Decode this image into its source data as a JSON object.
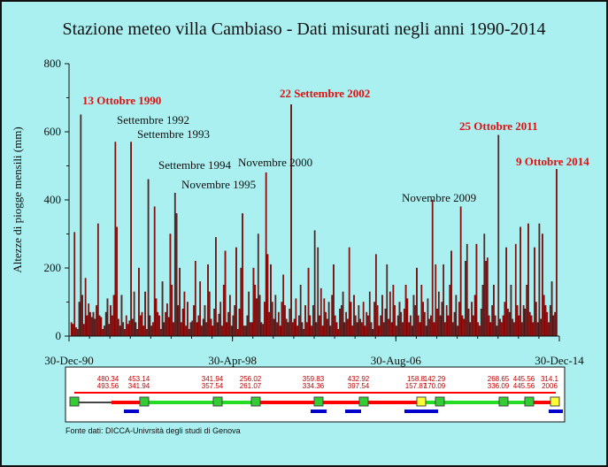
{
  "title": "Stazione meteo villa Cambiaso - Dati misurati negli anni 1990-2014",
  "source": "Fonte dati: DICCA-Univrsità degli studi di Genova",
  "colors": {
    "background": "#aaf0f0",
    "bar": "#a01010",
    "bar_outline": "#3a0000",
    "annotation_red": "#e01010",
    "timeline_red": "#ff0000",
    "timeline_green": "#22dd22",
    "marker_blue": "#0000cc"
  },
  "chart_data": {
    "type": "bar",
    "title": "Stazione meteo villa Cambiaso - Dati misurati negli anni 1990-2014",
    "ylabel": "Altezze di piogge mensili (mm)",
    "xlabel": "",
    "ylim": [
      0,
      800
    ],
    "yticks": [
      0,
      200,
      400,
      600,
      800
    ],
    "x_range": [
      "1990-12-30",
      "2014-12-30"
    ],
    "xtick_labels": [
      "30-Dec-90",
      "30-Apr-98",
      "30-Aug-06",
      "30-Dec-14"
    ],
    "values": [
      40,
      35,
      305,
      25,
      20,
      100,
      650,
      120,
      35,
      170,
      60,
      95,
      70,
      55,
      70,
      50,
      90,
      330,
      60,
      55,
      20,
      30,
      70,
      110,
      35,
      90,
      60,
      120,
      570,
      320,
      50,
      30,
      120,
      40,
      20,
      60,
      35,
      45,
      570,
      50,
      130,
      40,
      20,
      200,
      60,
      70,
      30,
      130,
      20,
      460,
      60,
      30,
      40,
      380,
      110,
      70,
      60,
      20,
      160,
      40,
      70,
      95,
      55,
      300,
      150,
      40,
      420,
      360,
      90,
      200,
      40,
      80,
      130,
      30,
      100,
      20,
      40,
      45,
      90,
      220,
      40,
      60,
      160,
      30,
      50,
      90,
      40,
      210,
      130,
      50,
      30,
      80,
      290,
      40,
      65,
      100,
      30,
      150,
      250,
      40,
      70,
      120,
      30,
      60,
      90,
      260,
      20,
      80,
      200,
      360,
      30,
      30,
      60,
      130,
      40,
      40,
      200,
      150,
      110,
      300,
      120,
      40,
      35,
      100,
      480,
      240,
      70,
      210,
      100,
      50,
      120,
      40,
      70,
      30,
      100,
      180,
      90,
      50,
      40,
      80,
      680,
      40,
      50,
      110,
      30,
      60,
      150,
      40,
      20,
      90,
      40,
      200,
      60,
      30,
      90,
      310,
      40,
      260,
      60,
      140,
      30,
      110,
      70,
      50,
      100,
      30,
      120,
      210,
      60,
      40,
      20,
      80,
      90,
      130,
      40,
      70,
      50,
      260,
      100,
      30,
      120,
      60,
      40,
      90,
      50,
      40,
      100,
      30,
      70,
      60,
      130,
      40,
      20,
      100,
      240,
      90,
      30,
      60,
      120,
      40,
      80,
      210,
      50,
      130,
      40,
      150,
      90,
      30,
      60,
      100,
      70,
      40,
      80,
      150,
      110,
      40,
      60,
      30,
      120,
      90,
      200,
      60,
      40,
      150,
      100,
      70,
      30,
      110,
      50,
      60,
      400,
      40,
      210,
      80,
      130,
      60,
      100,
      210,
      40,
      90,
      60,
      150,
      250,
      40,
      70,
      120,
      30,
      100,
      380,
      60,
      50,
      220,
      270,
      80,
      40,
      100,
      60,
      120,
      270,
      40,
      30,
      80,
      150,
      300,
      220,
      230,
      60,
      40,
      90,
      150,
      60,
      30,
      590,
      50,
      40,
      60,
      100,
      260,
      80,
      70,
      150,
      50,
      40,
      270,
      90,
      60,
      320,
      40,
      90,
      80,
      150,
      330,
      70,
      60,
      40,
      260,
      100,
      40,
      330,
      50,
      300,
      120,
      90,
      70,
      40,
      90,
      160,
      60,
      70,
      490
    ]
  },
  "annotations": [
    {
      "text": "13 Ottobre 1990",
      "color": "red"
    },
    {
      "text": "Settembre 1992",
      "color": "black"
    },
    {
      "text": "Settembre 1993",
      "color": "black"
    },
    {
      "text": "Settembre 1994",
      "color": "black"
    },
    {
      "text": "Novembre 1995",
      "color": "black"
    },
    {
      "text": "Novembre 2000",
      "color": "black"
    },
    {
      "text": "22 Settembre 2002",
      "color": "red"
    },
    {
      "text": "Novembre 2009",
      "color": "black"
    },
    {
      "text": "25 Ottobre 2011",
      "color": "red"
    },
    {
      "text": "9 Ottobre 2014",
      "color": "red"
    }
  ],
  "timeline": {
    "labels_top": [
      "480.34",
      "453.14",
      "341.94",
      "256.02",
      "359.83",
      "432.92",
      "158.8",
      "142.29",
      "268.65",
      "445.56",
      "314.1"
    ],
    "labels_bottom": [
      "493.56",
      "341.94",
      "357.54",
      "261.07",
      "334.36",
      "397.54",
      "157.87",
      "170.09",
      "336.09",
      "445.56",
      "2006"
    ]
  }
}
